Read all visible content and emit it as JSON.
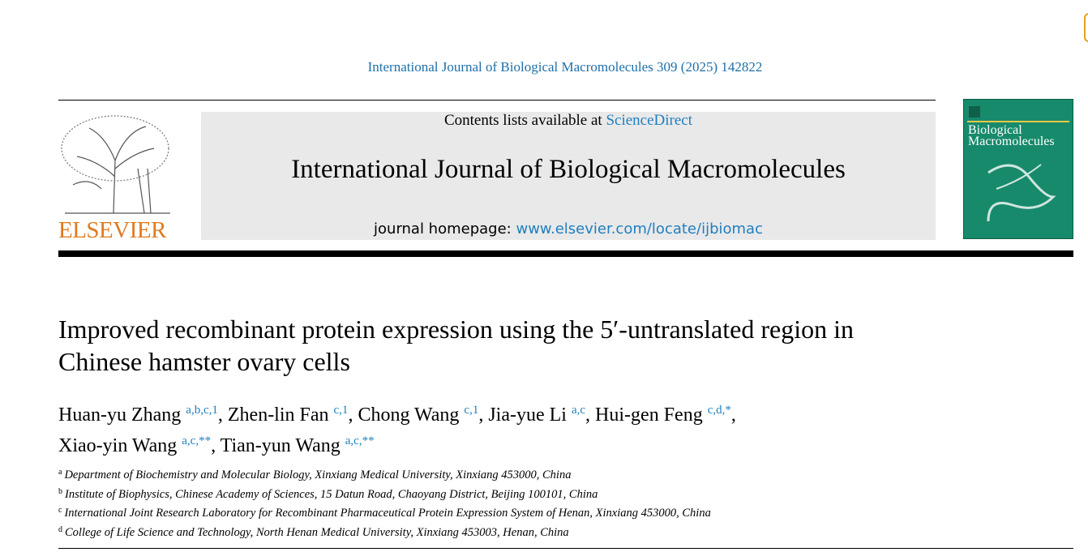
{
  "header": {
    "citation": "International Journal of Biological Macromolecules 309 (2025) 142822",
    "contents_prefix": "Contents lists available at",
    "contents_link": "ScienceDirect",
    "journal": "International Journal of Biological Macromolecules",
    "homepage_prefix": "journal homepage:",
    "homepage_link": "www.elsevier.com/locate/ijbiomac",
    "publisher": "ELSEVIER",
    "cover_title": "Biological Macromolecules"
  },
  "article": {
    "title": "Improved recombinant protein expression using the 5′-untranslated region in Chinese hamster ovary cells",
    "authors": [
      {
        "name": "Huan-yu Zhang",
        "sup": "a,b,c,1",
        "sep": ","
      },
      {
        "name": "Zhen-lin Fan",
        "sup": "c,1",
        "sep": ","
      },
      {
        "name": "Chong Wang",
        "sup": "c,1",
        "sep": ","
      },
      {
        "name": "Jia-yue Li",
        "sup": "a,c",
        "sep": ","
      },
      {
        "name": "Hui-gen Feng",
        "sup": "c,d,*",
        "sep": ","
      },
      {
        "name": "Xiao-yin Wang",
        "sup": "a,c,**",
        "sep": ","
      },
      {
        "name": "Tian-yun Wang",
        "sup": "a,c,**"
      }
    ],
    "affiliations": [
      {
        "key": "a",
        "text": "Department of Biochemistry and Molecular Biology, Xinxiang Medical University, Xinxiang 453000, China"
      },
      {
        "key": "b",
        "text": "Institute of Biophysics, Chinese Academy of Sciences, 15 Datun Road, Chaoyang District, Beijing 100101, China"
      },
      {
        "key": "c",
        "text": "International Joint Research Laboratory for Recombinant Pharmaceutical Protein Expression System of Henan, Xinxiang 453000, China"
      },
      {
        "key": "d",
        "text": "College of Life Science and Technology, North Henan Medical University, Xinxiang 453003, Henan, China"
      }
    ]
  }
}
